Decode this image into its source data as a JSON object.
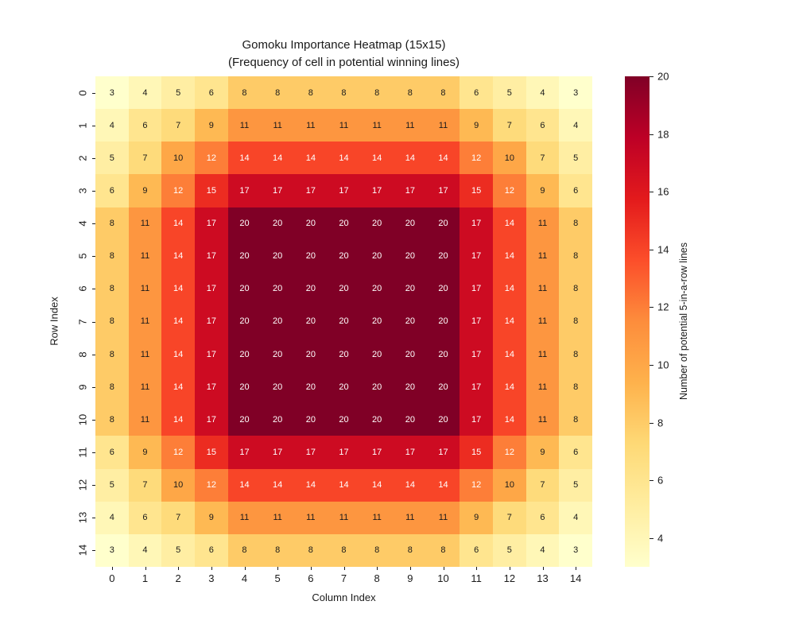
{
  "chart_data": {
    "type": "heatmap",
    "title": "Gomoku Importance Heatmap (15x15)",
    "subtitle": "(Frequency of cell in potential winning lines)",
    "xlabel": "Column Index",
    "ylabel": "Row Index",
    "colorbar_label": "Number of potential 5-in-a-row lines",
    "x_tick_labels": [
      "0",
      "1",
      "2",
      "3",
      "4",
      "5",
      "6",
      "7",
      "8",
      "9",
      "10",
      "11",
      "12",
      "13",
      "14"
    ],
    "y_tick_labels": [
      "0",
      "1",
      "2",
      "3",
      "4",
      "5",
      "6",
      "7",
      "8",
      "9",
      "10",
      "11",
      "12",
      "13",
      "14"
    ],
    "vmin": 3,
    "vmax": 20,
    "colorbar_ticks": [
      4,
      6,
      8,
      10,
      12,
      14,
      16,
      18,
      20
    ],
    "colormap": "YlOrRd",
    "colormap_stops": [
      {
        "pos": 0,
        "color": "#ffffcc"
      },
      {
        "pos": 12.5,
        "color": "#ffeda0"
      },
      {
        "pos": 25,
        "color": "#fed976"
      },
      {
        "pos": 37.5,
        "color": "#feb24c"
      },
      {
        "pos": 50,
        "color": "#fd8d3c"
      },
      {
        "pos": 62.5,
        "color": "#fc4e2a"
      },
      {
        "pos": 75,
        "color": "#e31a1c"
      },
      {
        "pos": 87.5,
        "color": "#bd0026"
      },
      {
        "pos": 100,
        "color": "#800026"
      }
    ],
    "value_colors": {
      "3": "#ffffcc",
      "4": "#fff7b7",
      "5": "#ffeea3",
      "6": "#ffe58f",
      "7": "#fedb7b",
      "8": "#fecb67",
      "9": "#feb953",
      "10": "#fea747",
      "11": "#fd9640",
      "12": "#fd7e38",
      "14": "#f84528",
      "15": "#ec2c21",
      "17": "#cd0b22",
      "20": "#800026"
    },
    "annotation_dark_color": "#1a1a1a",
    "annotation_light_color": "#ffffff",
    "white_text_min_value": 12,
    "matrix": [
      [
        3,
        4,
        5,
        6,
        8,
        8,
        8,
        8,
        8,
        8,
        8,
        6,
        5,
        4,
        3
      ],
      [
        4,
        6,
        7,
        9,
        11,
        11,
        11,
        11,
        11,
        11,
        11,
        9,
        7,
        6,
        4
      ],
      [
        5,
        7,
        10,
        12,
        14,
        14,
        14,
        14,
        14,
        14,
        14,
        12,
        10,
        7,
        5
      ],
      [
        6,
        9,
        12,
        15,
        17,
        17,
        17,
        17,
        17,
        17,
        17,
        15,
        12,
        9,
        6
      ],
      [
        8,
        11,
        14,
        17,
        20,
        20,
        20,
        20,
        20,
        20,
        20,
        17,
        14,
        11,
        8
      ],
      [
        8,
        11,
        14,
        17,
        20,
        20,
        20,
        20,
        20,
        20,
        20,
        17,
        14,
        11,
        8
      ],
      [
        8,
        11,
        14,
        17,
        20,
        20,
        20,
        20,
        20,
        20,
        20,
        17,
        14,
        11,
        8
      ],
      [
        8,
        11,
        14,
        17,
        20,
        20,
        20,
        20,
        20,
        20,
        20,
        17,
        14,
        11,
        8
      ],
      [
        8,
        11,
        14,
        17,
        20,
        20,
        20,
        20,
        20,
        20,
        20,
        17,
        14,
        11,
        8
      ],
      [
        8,
        11,
        14,
        17,
        20,
        20,
        20,
        20,
        20,
        20,
        20,
        17,
        14,
        11,
        8
      ],
      [
        8,
        11,
        14,
        17,
        20,
        20,
        20,
        20,
        20,
        20,
        20,
        17,
        14,
        11,
        8
      ],
      [
        6,
        9,
        12,
        15,
        17,
        17,
        17,
        17,
        17,
        17,
        17,
        15,
        12,
        9,
        6
      ],
      [
        5,
        7,
        10,
        12,
        14,
        14,
        14,
        14,
        14,
        14,
        14,
        12,
        10,
        7,
        5
      ],
      [
        4,
        6,
        7,
        9,
        11,
        11,
        11,
        11,
        11,
        11,
        11,
        9,
        7,
        6,
        4
      ],
      [
        3,
        4,
        5,
        6,
        8,
        8,
        8,
        8,
        8,
        8,
        8,
        6,
        5,
        4,
        3
      ]
    ]
  }
}
